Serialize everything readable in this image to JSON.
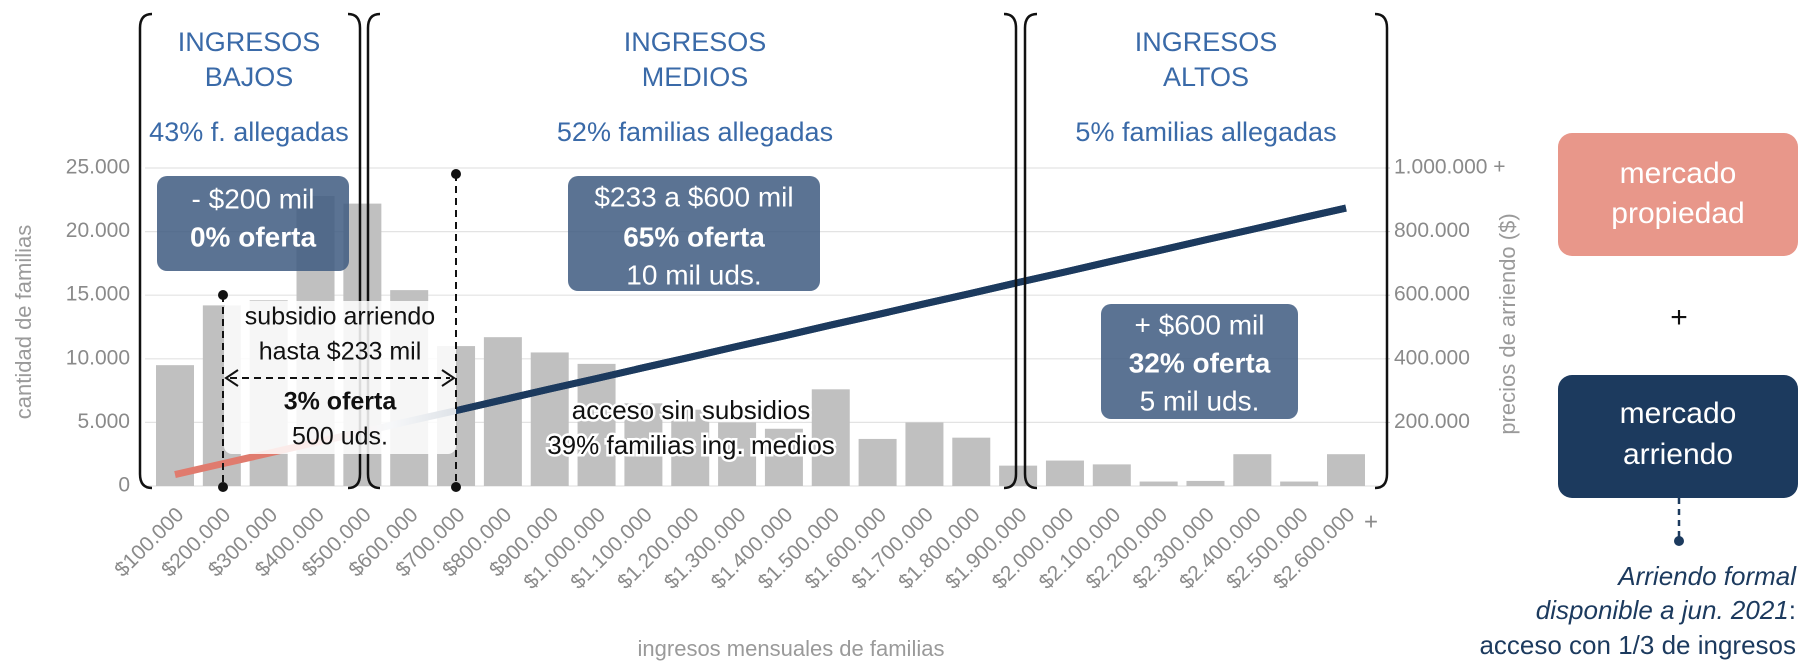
{
  "chart_data": {
    "type": "bar",
    "categories": [
      "$100.000",
      "$200.000",
      "$300.000",
      "$400.000",
      "$500.000",
      "$600.000",
      "$700.000",
      "$800.000",
      "$900.000",
      "$1.000.000",
      "$1.100.000",
      "$1.200.000",
      "$1.300.000",
      "$1.400.000",
      "$1.500.000",
      "$1.600.000",
      "$1.700.000",
      "$1.800.000",
      "$1.900.000",
      "$2.000.000",
      "$2.100.000",
      "$2.200.000",
      "$2.300.000",
      "$2.400.000",
      "$2.500.000",
      "$2.600.000"
    ],
    "values": [
      9500,
      14200,
      14600,
      22800,
      22200,
      15400,
      11000,
      11700,
      10500,
      9600,
      6500,
      6000,
      5000,
      4500,
      7600,
      3700,
      5000,
      3800,
      1600,
      2000,
      1700,
      350,
      400,
      2500,
      350,
      2500
    ],
    "color": "#c0c0c0",
    "series": [
      {
        "type": "line",
        "axis": "y2",
        "color": "#1c3a5e",
        "values": [
          36000,
          69500,
          103000,
          137000,
          170000,
          204000,
          237000,
          271000,
          305000,
          338000,
          372000,
          405000,
          439000,
          472000,
          506000,
          539000,
          573000,
          606000,
          640000,
          673000,
          707000,
          740000,
          774000,
          807000,
          841000,
          874000
        ]
      }
    ],
    "ylim": [
      0,
      25000
    ],
    "yticks": [
      0,
      {
        "value": 5000,
        "label": "5.000"
      },
      {
        "value": 10000,
        "label": "10.000"
      },
      {
        "value": 15000,
        "label": "15.000"
      },
      {
        "value": 20000,
        "label": "20.000"
      },
      {
        "value": 25000,
        "label": "25.000"
      }
    ],
    "y2lim": [
      0,
      1000000
    ],
    "y2ticks": [
      {
        "value": 200000,
        "label": "200.000"
      },
      {
        "value": 400000,
        "label": "400.000"
      },
      {
        "value": 600000,
        "label": "600.000"
      },
      {
        "value": 800000,
        "label": "800.000"
      },
      {
        "value": 1000000,
        "label": "1.000.000 +"
      }
    ],
    "grid": true,
    "xlabel": "ingresos mensuales de familias",
    "x_end": "+",
    "ylabel": "cantidad de familias",
    "y2label": "precios de arriendo ($)",
    "bands": [
      {
        "title": [
          "INGRESOS",
          "BAJOS"
        ],
        "subtitle": "43% f. allegadas"
      },
      {
        "title": [
          "INGRESOS",
          "MEDIOS"
        ],
        "subtitle": "52% familias allegadas"
      },
      {
        "title": [
          "INGRESOS",
          "ALTOS"
        ],
        "subtitle": "5% familias allegadas"
      }
    ],
    "boxes": [
      {
        "lines": [
          "- $200 mil",
          "0% oferta"
        ]
      },
      {
        "lines": [
          "$233 a $600 mil",
          "65% oferta",
          "10 mil uds."
        ]
      },
      {
        "lines": [
          "+ $600 mil",
          "32% oferta",
          "5 mil uds."
        ]
      }
    ],
    "subsidy": {
      "lines": [
        "subsidio arriendo",
        "hasta $233 mil"
      ],
      "offer": [
        "3% oferta",
        "500 uds."
      ]
    },
    "access": [
      "acceso sin subsidios",
      "39% familias ing. medios"
    ],
    "markets": [
      {
        "lines": [
          "mercado",
          "propiedad"
        ],
        "color": "#e8978a"
      },
      {
        "lines": [
          "mercado",
          "arriendo"
        ],
        "color": "#1c3a5e"
      }
    ],
    "plus": "+",
    "note": {
      "line1": "Arriendo formal",
      "line2": "disponible a jun. 2021",
      "colon": ":",
      "line3": "acceso con 1/3 de ingresos"
    }
  }
}
